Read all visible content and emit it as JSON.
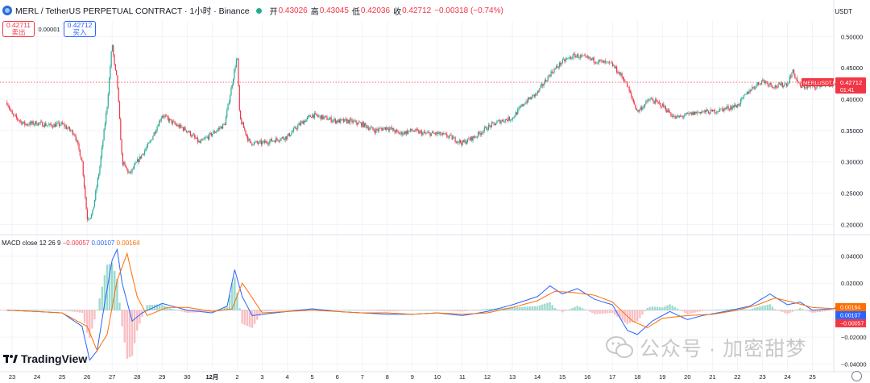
{
  "header": {
    "title": "MERL / TetherUS PERPETUAL CONTRACT · 1小时 · Binance",
    "open_label": "开",
    "open": "0.43026",
    "high_label": "高",
    "high": "0.43045",
    "low_label": "低",
    "low": "0.42036",
    "close_label": "收",
    "close": "0.42712",
    "change": "−0.00318 (−0.74%)"
  },
  "trade": {
    "sell_price": "0.42711",
    "sell_label": "卖出",
    "spread": "0.00001",
    "buy_price": "0.42712",
    "buy_label": "买入"
  },
  "currency": "USDT",
  "price_tag": {
    "symbol": "MERLUSDT.P",
    "price": "0.42712",
    "countdown": "01:41"
  },
  "macd_header": {
    "name": "MACD",
    "params": "close 12 26 9",
    "hist": "−0.00057",
    "macd": "0.00107",
    "signal": "0.00164"
  },
  "macd_tags": {
    "signal": "0.00164",
    "macd": "0.00107",
    "hist": "−0.00057"
  },
  "watermark": "公众号 · 加密甜梦",
  "brand": "TradingView",
  "colors": {
    "up": "#22ab94",
    "down": "#f23645",
    "macd": "#2962ff",
    "signal": "#ff6d00",
    "grid": "#f0f3fa"
  },
  "chart_data": [
    {
      "type": "candlestick",
      "title": "MERL / TetherUS PERPETUAL CONTRACT · 1小时 · Binance",
      "price_axis": {
        "ticks": [
          "0.50000",
          "0.45000",
          "0.40000",
          "0.35000",
          "0.30000",
          "0.25000",
          "0.20000"
        ],
        "ylim": [
          0.185,
          0.525
        ],
        "unit": "USDT"
      },
      "time_axis": {
        "ticks": [
          "23",
          "24",
          "25",
          "26",
          "27",
          "28",
          "29",
          "30",
          "12月",
          "2",
          "3",
          "4",
          "5",
          "6",
          "7",
          "8",
          "9",
          "10",
          "11",
          "12",
          "13",
          "14",
          "15",
          "16",
          "17",
          "18",
          "19",
          "20",
          "21",
          "22",
          "23",
          "24",
          "25"
        ]
      },
      "close_path": [
        [
          22.8,
          0.395
        ],
        [
          23.0,
          0.375
        ],
        [
          23.5,
          0.36
        ],
        [
          24.0,
          0.362
        ],
        [
          24.5,
          0.358
        ],
        [
          25.0,
          0.36
        ],
        [
          25.5,
          0.345
        ],
        [
          25.8,
          0.3
        ],
        [
          26.0,
          0.21
        ],
        [
          26.2,
          0.215
        ],
        [
          26.5,
          0.29
        ],
        [
          26.8,
          0.39
        ],
        [
          27.0,
          0.49
        ],
        [
          27.1,
          0.45
        ],
        [
          27.2,
          0.43
        ],
        [
          27.4,
          0.3
        ],
        [
          27.7,
          0.28
        ],
        [
          28.0,
          0.3
        ],
        [
          28.5,
          0.33
        ],
        [
          29.0,
          0.375
        ],
        [
          29.5,
          0.36
        ],
        [
          30.0,
          0.35
        ],
        [
          30.5,
          0.33
        ],
        [
          31.0,
          0.345
        ],
        [
          31.5,
          0.36
        ],
        [
          32.0,
          0.47
        ],
        [
          32.1,
          0.37
        ],
        [
          32.5,
          0.33
        ],
        [
          33.0,
          0.33
        ],
        [
          33.5,
          0.335
        ],
        [
          34.0,
          0.34
        ],
        [
          34.5,
          0.36
        ],
        [
          35.0,
          0.375
        ],
        [
          35.5,
          0.37
        ],
        [
          36.0,
          0.365
        ],
        [
          36.5,
          0.365
        ],
        [
          37.0,
          0.36
        ],
        [
          37.5,
          0.35
        ],
        [
          38.0,
          0.355
        ],
        [
          38.5,
          0.345
        ],
        [
          39.0,
          0.35
        ],
        [
          39.5,
          0.345
        ],
        [
          40.0,
          0.345
        ],
        [
          40.5,
          0.34
        ],
        [
          41.0,
          0.33
        ],
        [
          41.5,
          0.34
        ],
        [
          42.0,
          0.355
        ],
        [
          42.5,
          0.365
        ],
        [
          43.0,
          0.37
        ],
        [
          43.5,
          0.395
        ],
        [
          44.0,
          0.41
        ],
        [
          44.5,
          0.44
        ],
        [
          45.0,
          0.46
        ],
        [
          45.5,
          0.47
        ],
        [
          46.0,
          0.465
        ],
        [
          46.5,
          0.46
        ],
        [
          47.0,
          0.455
        ],
        [
          47.5,
          0.43
        ],
        [
          48.0,
          0.38
        ],
        [
          48.5,
          0.4
        ],
        [
          49.0,
          0.39
        ],
        [
          49.5,
          0.37
        ],
        [
          50.0,
          0.375
        ],
        [
          50.5,
          0.38
        ],
        [
          51.0,
          0.38
        ],
        [
          51.5,
          0.385
        ],
        [
          52.0,
          0.39
        ],
        [
          52.5,
          0.415
        ],
        [
          53.0,
          0.43
        ],
        [
          53.5,
          0.42
        ],
        [
          54.0,
          0.425
        ],
        [
          54.2,
          0.445
        ],
        [
          54.5,
          0.42
        ],
        [
          55.0,
          0.42
        ],
        [
          55.5,
          0.425
        ],
        [
          56.0,
          0.42
        ],
        [
          56.5,
          0.43
        ],
        [
          56.7,
          0.42712
        ]
      ]
    },
    {
      "type": "macd",
      "name": "MACD close 12 26 9",
      "y_axis": {
        "ticks": [
          "0.04000",
          "0.02000",
          "−0.02000",
          "−0.04000"
        ],
        "ylim": [
          -0.045,
          0.047
        ]
      },
      "series": [
        {
          "name": "MACD",
          "color": "#2962ff",
          "values": [
            [
              22.8,
              0.0
            ],
            [
              24.0,
              -0.001
            ],
            [
              25.0,
              -0.002
            ],
            [
              25.8,
              -0.012
            ],
            [
              26.1,
              -0.037
            ],
            [
              26.4,
              -0.03
            ],
            [
              26.7,
              0.005
            ],
            [
              27.0,
              0.037
            ],
            [
              27.2,
              0.045
            ],
            [
              27.4,
              0.02
            ],
            [
              27.8,
              -0.008
            ],
            [
              28.2,
              -0.002
            ],
            [
              29.0,
              0.005
            ],
            [
              30.0,
              0.0
            ],
            [
              31.0,
              -0.002
            ],
            [
              31.6,
              0.003
            ],
            [
              31.9,
              0.03
            ],
            [
              32.2,
              0.01
            ],
            [
              32.6,
              -0.004
            ],
            [
              33.5,
              -0.002
            ],
            [
              35.0,
              0.001
            ],
            [
              36.0,
              -0.001
            ],
            [
              37.0,
              -0.002
            ],
            [
              38.0,
              -0.003
            ],
            [
              39.0,
              -0.003
            ],
            [
              40.0,
              -0.002
            ],
            [
              41.0,
              -0.004
            ],
            [
              42.0,
              -0.001
            ],
            [
              43.0,
              0.004
            ],
            [
              44.0,
              0.01
            ],
            [
              44.5,
              0.018
            ],
            [
              45.0,
              0.012
            ],
            [
              45.6,
              0.016
            ],
            [
              46.3,
              0.008
            ],
            [
              47.0,
              0.004
            ],
            [
              47.6,
              -0.015
            ],
            [
              48.0,
              -0.018
            ],
            [
              48.6,
              -0.008
            ],
            [
              49.3,
              -0.001
            ],
            [
              50.0,
              -0.007
            ],
            [
              50.6,
              -0.004
            ],
            [
              51.5,
              -0.001
            ],
            [
              52.5,
              0.003
            ],
            [
              53.3,
              0.012
            ],
            [
              54.0,
              0.004
            ],
            [
              54.5,
              0.006
            ],
            [
              55.0,
              0.0
            ],
            [
              55.8,
              0.001
            ],
            [
              56.3,
              0.004
            ],
            [
              56.7,
              0.00107
            ]
          ]
        },
        {
          "name": "Signal",
          "color": "#ff6d00",
          "values": [
            [
              22.8,
              0.0
            ],
            [
              24.0,
              -0.001
            ],
            [
              25.0,
              -0.002
            ],
            [
              26.0,
              -0.012
            ],
            [
              26.4,
              -0.03
            ],
            [
              26.8,
              -0.018
            ],
            [
              27.2,
              0.022
            ],
            [
              27.6,
              0.042
            ],
            [
              28.0,
              0.01
            ],
            [
              28.4,
              -0.004
            ],
            [
              29.2,
              0.002
            ],
            [
              30.0,
              0.002
            ],
            [
              31.0,
              -0.001
            ],
            [
              31.8,
              0.001
            ],
            [
              32.2,
              0.02
            ],
            [
              32.5,
              0.012
            ],
            [
              33.0,
              -0.002
            ],
            [
              34.0,
              -0.001
            ],
            [
              35.0,
              0.0
            ],
            [
              36.0,
              -0.001
            ],
            [
              37.0,
              -0.002
            ],
            [
              38.0,
              -0.002
            ],
            [
              39.0,
              -0.003
            ],
            [
              40.0,
              -0.002
            ],
            [
              41.0,
              -0.003
            ],
            [
              42.0,
              -0.002
            ],
            [
              43.0,
              0.002
            ],
            [
              44.0,
              0.007
            ],
            [
              44.7,
              0.014
            ],
            [
              45.5,
              0.013
            ],
            [
              46.3,
              0.011
            ],
            [
              47.0,
              0.006
            ],
            [
              47.8,
              -0.008
            ],
            [
              48.4,
              -0.013
            ],
            [
              49.0,
              -0.006
            ],
            [
              50.0,
              -0.004
            ],
            [
              51.0,
              -0.003
            ],
            [
              52.0,
              0.0
            ],
            [
              52.8,
              0.004
            ],
            [
              53.5,
              0.009
            ],
            [
              54.2,
              0.006
            ],
            [
              55.0,
              0.002
            ],
            [
              56.0,
              0.001
            ],
            [
              56.7,
              0.00164
            ]
          ]
        }
      ],
      "last_histogram": -0.00057
    }
  ]
}
